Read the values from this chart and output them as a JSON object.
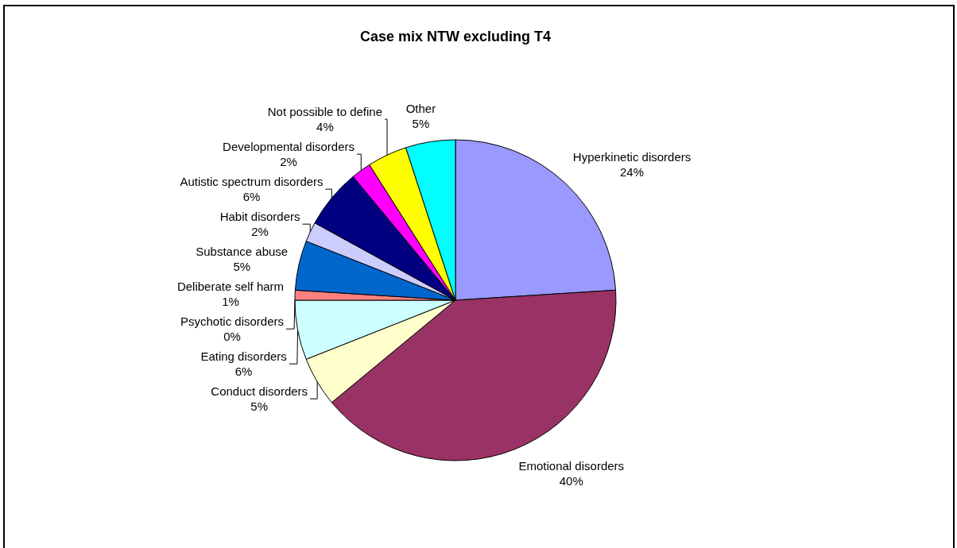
{
  "chart_data": {
    "type": "pie",
    "title": "Case mix NTW excluding T4",
    "categories": [
      "Hyperkinetic disorders",
      "Emotional disorders",
      "Conduct disorders",
      "Eating disorders",
      "Psychotic disorders",
      "Deliberate self harm",
      "Substance abuse",
      "Habit disorders",
      "Autistic spectrum disorders",
      "Developmental disorders",
      "Not possible to define",
      "Other"
    ],
    "values": [
      24,
      40,
      5,
      6,
      0,
      1,
      5,
      2,
      6,
      2,
      4,
      5
    ],
    "value_labels": [
      "24%",
      "40%",
      "5%",
      "6%",
      "0%",
      "1%",
      "5%",
      "2%",
      "6%",
      "2%",
      "4%",
      "5%"
    ],
    "colors": [
      "#9999ff",
      "#993366",
      "#ffffcc",
      "#ccffff",
      "#660066",
      "#ff8080",
      "#0066cc",
      "#ccccff",
      "#000080",
      "#ff00ff",
      "#ffff00",
      "#00ffff"
    ]
  }
}
